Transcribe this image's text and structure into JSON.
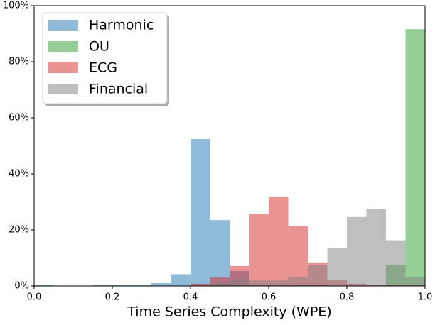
{
  "chart_data": {
    "type": "histogram",
    "x_label": "Time Series Complexity (WPE)",
    "bins": [
      0,
      0.05,
      0.1,
      0.15,
      0.2,
      0.25,
      0.3,
      0.35,
      0.4,
      0.45,
      0.5,
      0.55,
      0.6,
      0.65,
      0.7,
      0.75,
      0.8,
      0.85,
      0.9,
      0.95,
      1
    ],
    "series": [
      {
        "name": "Harmonic",
        "color": "#1f77b4",
        "values": [
          0,
          0,
          0,
          0.3,
          0.3,
          0.3,
          1.0,
          4.2,
          52.4,
          23.5,
          5.3,
          0.5,
          0.5,
          0.3,
          0.3,
          0,
          0,
          0,
          0,
          0
        ]
      },
      {
        "name": "OU",
        "color": "#2ca02c",
        "values": [
          0.3,
          0,
          0,
          0,
          0,
          0,
          0,
          0,
          0,
          0,
          0,
          0,
          0,
          0,
          0,
          0,
          0,
          0,
          7.5,
          91.6
        ]
      },
      {
        "name": "ECG",
        "color": "#d62728",
        "values": [
          0,
          0,
          0,
          0,
          0,
          0,
          0,
          0,
          0.8,
          3.0,
          7.1,
          25.6,
          31.8,
          21.3,
          8.4,
          2.0,
          0.8,
          0.5,
          0.3,
          0.3
        ]
      },
      {
        "name": "Financial",
        "color": "#7f7f7f",
        "values": [
          0,
          0,
          0,
          0,
          0,
          0,
          0,
          0,
          0,
          1.0,
          2.5,
          2.0,
          2.0,
          3.3,
          7.6,
          13.4,
          24.6,
          27.6,
          16.3,
          3.3
        ]
      }
    ],
    "opacity": 0.5,
    "xlim": [
      0,
      1
    ],
    "xticks": [
      {
        "value": 0,
        "label": "0.0"
      },
      0.2,
      0.4,
      0.6,
      0.8,
      {
        "value": 1,
        "label": "1.0"
      }
    ],
    "ylim": [
      0,
      100
    ],
    "yticks": [
      {
        "value": 0,
        "label": "0%"
      },
      {
        "value": 20,
        "label": "20%"
      },
      {
        "value": 40,
        "label": "40%"
      },
      {
        "value": 60,
        "label": "60%"
      },
      {
        "value": 80,
        "label": "80%"
      },
      {
        "value": 100,
        "label": "100%"
      }
    ],
    "legend": "upper left"
  }
}
